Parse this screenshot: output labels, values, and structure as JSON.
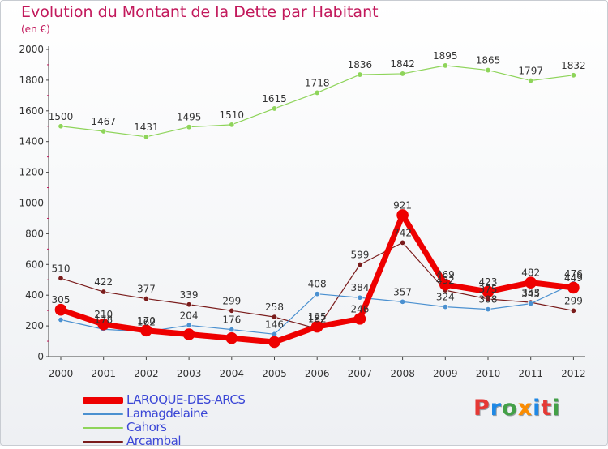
{
  "title": "Evolution du Montant de la Dette par Habitant",
  "subtitle": "(en €)",
  "logo": {
    "letters": [
      "P",
      "r",
      "o",
      "x",
      "i",
      "t",
      "i"
    ],
    "colors": [
      "#e53935",
      "#1e88e5",
      "#43a047",
      "#fb8c00",
      "#1e88e5",
      "#e53935",
      "#43a047"
    ]
  },
  "chart_data": {
    "type": "line",
    "title": "Evolution du Montant de la Dette par Habitant",
    "ylabel": "(en €)",
    "x": [
      "2000",
      "2001",
      "2002",
      "2003",
      "2004",
      "2005",
      "2006",
      "2007",
      "2008",
      "2009",
      "2010",
      "2011",
      "2012"
    ],
    "ylim": [
      0,
      2000
    ],
    "yticks": [
      0,
      200,
      400,
      600,
      800,
      1000,
      1200,
      1400,
      1600,
      1800,
      2000
    ],
    "grid": false,
    "legend_position": "bottom-left",
    "series": [
      {
        "name": "LAROQUE-DES-ARCS",
        "color": "#ee0000",
        "width": 7,
        "values": [
          305,
          210,
          170,
          145,
          120,
          95,
          195,
          246,
          921,
          469,
          423,
          482,
          449
        ],
        "labels": [
          "305",
          "210",
          "170",
          "",
          "",
          "",
          "195",
          "246",
          "921",
          "469",
          "423",
          "482",
          "449"
        ]
      },
      {
        "name": "Lamagdelaine",
        "color": "#4a90d0",
        "width": 1.2,
        "values": [
          240,
          178,
          162,
          204,
          176,
          146,
          408,
          384,
          357,
          324,
          308,
          345,
          476
        ],
        "labels": [
          "",
          "178",
          "162",
          "204",
          "176",
          "146",
          "408",
          "384",
          "357",
          "324",
          "308",
          "345",
          "476"
        ]
      },
      {
        "name": "Cahors",
        "color": "#8ed45a",
        "width": 1.2,
        "values": [
          1500,
          1467,
          1431,
          1495,
          1510,
          1615,
          1718,
          1836,
          1842,
          1895,
          1865,
          1797,
          1832
        ],
        "labels": [
          "1500",
          "1467",
          "1431",
          "1495",
          "1510",
          "1615",
          "1718",
          "1836",
          "1842",
          "1895",
          "1865",
          "1797",
          "1832"
        ]
      },
      {
        "name": "Arcambal",
        "color": "#7a1c1c",
        "width": 1.2,
        "values": [
          510,
          422,
          377,
          339,
          299,
          258,
          182,
          599,
          742,
          432,
          375,
          353,
          299
        ],
        "labels": [
          "510",
          "422",
          "377",
          "339",
          "299",
          "258",
          "182",
          "599",
          "742",
          "432",
          "375",
          "353",
          "299"
        ]
      }
    ]
  }
}
